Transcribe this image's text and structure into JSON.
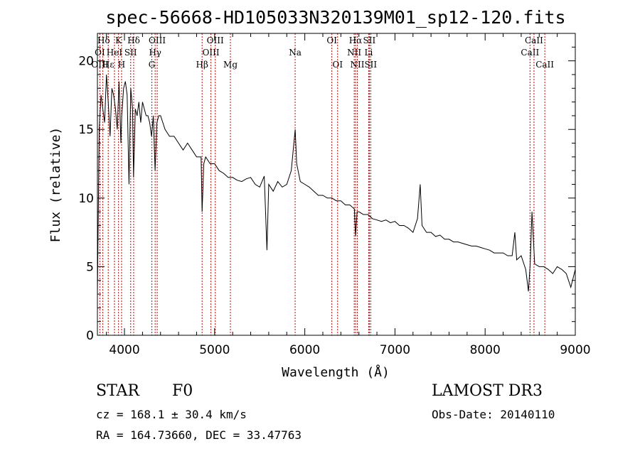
{
  "chart_data": {
    "type": "line",
    "title": "spec-56668-HD105033N320139M01_sp12-120.fits",
    "xlabel": "Wavelength (Å)",
    "ylabel": "Flux (relative)",
    "xlim": [
      3700,
      9000
    ],
    "ylim": [
      0,
      22
    ],
    "xticks": [
      4000,
      5000,
      6000,
      7000,
      8000,
      9000
    ],
    "yticks": [
      0,
      5,
      10,
      15,
      20
    ],
    "grid": false,
    "series": [
      {
        "name": "spectrum",
        "x": [
          3700,
          3720,
          3740,
          3760,
          3780,
          3800,
          3820,
          3840,
          3860,
          3880,
          3900,
          3920,
          3940,
          3960,
          3970,
          3990,
          4010,
          4030,
          4050,
          4070,
          4090,
          4101,
          4120,
          4140,
          4160,
          4180,
          4200,
          4220,
          4240,
          4260,
          4280,
          4300,
          4320,
          4340,
          4360,
          4380,
          4400,
          4450,
          4500,
          4550,
          4600,
          4650,
          4700,
          4750,
          4800,
          4850,
          4861,
          4880,
          4900,
          4950,
          5000,
          5050,
          5100,
          5150,
          5200,
          5250,
          5300,
          5350,
          5400,
          5450,
          5500,
          5550,
          5580,
          5600,
          5650,
          5700,
          5750,
          5800,
          5850,
          5893,
          5910,
          5950,
          6000,
          6050,
          6100,
          6150,
          6200,
          6250,
          6300,
          6350,
          6400,
          6450,
          6500,
          6550,
          6563,
          6580,
          6600,
          6650,
          6700,
          6750,
          6800,
          6850,
          6900,
          6950,
          7000,
          7050,
          7100,
          7150,
          7200,
          7250,
          7280,
          7300,
          7350,
          7400,
          7450,
          7500,
          7550,
          7600,
          7650,
          7700,
          7750,
          7800,
          7850,
          7900,
          7950,
          8000,
          8050,
          8100,
          8150,
          8200,
          8250,
          8300,
          8330,
          8350,
          8400,
          8450,
          8480,
          8500,
          8520,
          8550,
          8600,
          8650,
          8700,
          8750,
          8800,
          8850,
          8900,
          8950,
          9000
        ],
        "values": [
          3,
          15,
          17.5,
          16.5,
          15.5,
          19,
          17,
          14.5,
          18,
          17.5,
          16.5,
          15,
          18.5,
          14,
          16,
          18,
          18.5,
          17.5,
          11,
          18,
          16.5,
          11.5,
          16.5,
          16,
          17,
          15.5,
          17,
          16.5,
          16,
          16,
          15.5,
          14.5,
          16,
          12,
          15.5,
          16,
          16,
          15,
          14.5,
          14.5,
          14,
          13.5,
          14,
          13.5,
          13,
          13,
          9,
          12.5,
          13,
          12.5,
          12.5,
          12,
          11.8,
          11.5,
          11.5,
          11.3,
          11.2,
          11.4,
          11.5,
          11,
          10.8,
          11.6,
          6.2,
          11,
          10.5,
          11.2,
          10.8,
          11,
          12,
          15,
          12.5,
          11.2,
          11,
          10.8,
          10.5,
          10.2,
          10.2,
          10,
          10,
          9.8,
          9.8,
          9.5,
          9.5,
          9.2,
          7.2,
          9,
          9,
          8.8,
          8.8,
          8.5,
          8.4,
          8.3,
          8.4,
          8.2,
          8.3,
          8,
          8,
          7.8,
          7.5,
          8.5,
          11,
          8,
          7.5,
          7.5,
          7.2,
          7.3,
          7,
          7,
          6.8,
          6.8,
          6.7,
          6.6,
          6.5,
          6.5,
          6.4,
          6.3,
          6.2,
          6,
          6,
          6,
          5.8,
          5.8,
          7.5,
          5.5,
          5.8,
          4.8,
          3.2,
          5.2,
          9,
          5.2,
          5,
          5,
          4.8,
          4.5,
          5,
          4.8,
          4.5,
          3.5,
          4.8
        ]
      }
    ],
    "line_labels": [
      {
        "label": "Hδ",
        "x": 3770,
        "row": 0
      },
      {
        "label": "OI",
        "x": 3727,
        "row": 1
      },
      {
        "label": "OIII",
        "x": 3727,
        "row": 2
      },
      {
        "label": "K",
        "x": 3934,
        "row": 0
      },
      {
        "label": "HeI",
        "x": 3889,
        "row": 1
      },
      {
        "label": "Hε",
        "x": 3820,
        "row": 2
      },
      {
        "label": "Hδ",
        "x": 4102,
        "row": 0
      },
      {
        "label": "SII",
        "x": 4069,
        "row": 1
      },
      {
        "label": "H",
        "x": 3968,
        "row": 2
      },
      {
        "label": "OIII",
        "x": 4363,
        "row": 0
      },
      {
        "label": "Hγ",
        "x": 4340,
        "row": 1
      },
      {
        "label": "G",
        "x": 4304,
        "row": 2
      },
      {
        "label": "OIII",
        "x": 5007,
        "row": 0
      },
      {
        "label": "OIII",
        "x": 4959,
        "row": 1
      },
      {
        "label": "Hβ",
        "x": 4861,
        "row": 2
      },
      {
        "label": "Mg",
        "x": 5175,
        "row": 2
      },
      {
        "label": "Na",
        "x": 5893,
        "row": 1
      },
      {
        "label": "OI",
        "x": 6300,
        "row": 0
      },
      {
        "label": "OI",
        "x": 6364,
        "row": 2
      },
      {
        "label": "Hα",
        "x": 6563,
        "row": 0
      },
      {
        "label": "NII",
        "x": 6548,
        "row": 1
      },
      {
        "label": "NII",
        "x": 6583,
        "row": 2
      },
      {
        "label": "SII",
        "x": 6716,
        "row": 0
      },
      {
        "label": "Li",
        "x": 6708,
        "row": 1
      },
      {
        "label": "SII",
        "x": 6731,
        "row": 2
      },
      {
        "label": "CaII",
        "x": 8542,
        "row": 0
      },
      {
        "label": "CaII",
        "x": 8498,
        "row": 1
      },
      {
        "label": "CaII",
        "x": 8662,
        "row": 2
      }
    ],
    "marker_lines": [
      3727,
      3760,
      3820,
      3889,
      3934,
      3968,
      4069,
      4102,
      4304,
      4340,
      4363,
      4861,
      4959,
      5007,
      5175,
      5893,
      6300,
      6364,
      6548,
      6563,
      6583,
      6708,
      6716,
      6731,
      8498,
      8542,
      8662
    ]
  },
  "info": {
    "object_class": "STAR",
    "subclass": "F0",
    "cz": "cz = 168.1 ± 30.4 km/s",
    "coords": "RA = 164.73660, DEC =  33.47763",
    "survey": "LAMOST DR3",
    "obs_date": "Obs-Date: 20140110"
  },
  "colors": {
    "spectrum": "#000000",
    "marker": "#cc0000",
    "axes": "#000000"
  }
}
